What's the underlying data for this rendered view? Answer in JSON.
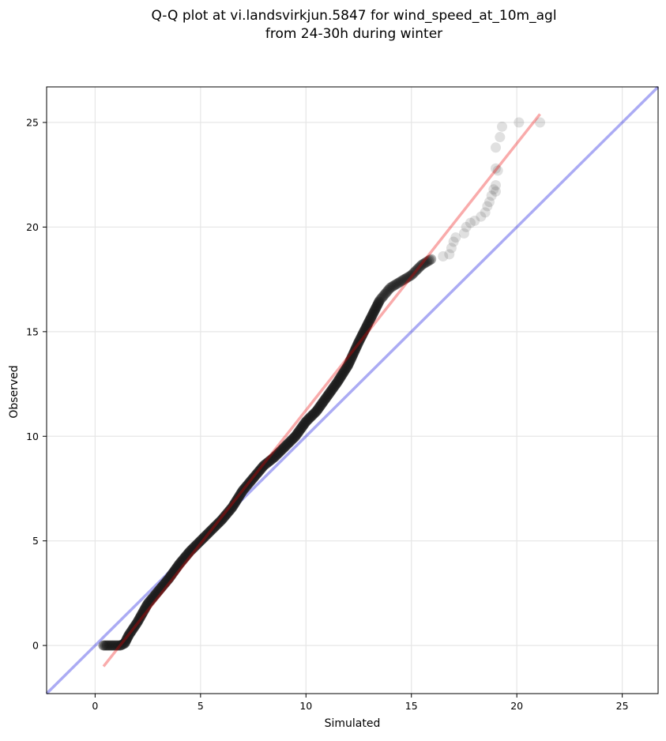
{
  "chart_data": {
    "type": "scatter",
    "title": [
      "Q-Q plot at vi.landsvirkjun.5847 for wind_speed_at_10m_agl",
      "from 24-30h during winter"
    ],
    "xlabel": "Simulated",
    "ylabel": "Observed",
    "xlim": [
      -2.3,
      26.7
    ],
    "ylim": [
      -2.3,
      26.7
    ],
    "x_ticks": [
      0,
      5,
      10,
      15,
      20,
      25
    ],
    "y_ticks": [
      0,
      5,
      10,
      15,
      20,
      25
    ],
    "grid": true,
    "reference_line": {
      "name": "1:1",
      "color": "#0000dd",
      "slope": 1,
      "intercept": 0
    },
    "fit_line": {
      "color": "#ee0000",
      "x": [
        0.4,
        21.1
      ],
      "y": [
        -1.0,
        25.4
      ]
    },
    "quantile_curve": [
      [
        0.4,
        0.0
      ],
      [
        1.2,
        0.0
      ],
      [
        1.4,
        0.1
      ],
      [
        1.6,
        0.5
      ],
      [
        2.0,
        1.1
      ],
      [
        2.5,
        2.0
      ],
      [
        3.0,
        2.6
      ],
      [
        3.5,
        3.2
      ],
      [
        4.0,
        3.9
      ],
      [
        4.5,
        4.5
      ],
      [
        5.0,
        5.0
      ],
      [
        5.5,
        5.5
      ],
      [
        6.0,
        6.0
      ],
      [
        6.5,
        6.6
      ],
      [
        7.0,
        7.4
      ],
      [
        7.5,
        8.0
      ],
      [
        8.0,
        8.6
      ],
      [
        8.5,
        9.0
      ],
      [
        9.0,
        9.5
      ],
      [
        9.5,
        10.0
      ],
      [
        10.0,
        10.7
      ],
      [
        10.5,
        11.2
      ],
      [
        11.0,
        11.9
      ],
      [
        11.5,
        12.6
      ],
      [
        12.0,
        13.4
      ],
      [
        12.5,
        14.5
      ],
      [
        13.0,
        15.5
      ],
      [
        13.5,
        16.5
      ],
      [
        14.0,
        17.1
      ],
      [
        14.5,
        17.4
      ],
      [
        15.0,
        17.7
      ],
      [
        15.5,
        18.2
      ],
      [
        16.0,
        18.5
      ]
    ],
    "tail_points": [
      [
        16.5,
        18.6
      ],
      [
        16.8,
        18.7
      ],
      [
        16.9,
        19.0
      ],
      [
        17.0,
        19.3
      ],
      [
        17.1,
        19.5
      ],
      [
        17.5,
        19.7
      ],
      [
        17.6,
        20.0
      ],
      [
        17.8,
        20.2
      ],
      [
        18.0,
        20.3
      ],
      [
        18.3,
        20.5
      ],
      [
        18.5,
        20.7
      ],
      [
        18.6,
        21.0
      ],
      [
        18.7,
        21.2
      ],
      [
        18.8,
        21.5
      ],
      [
        19.0,
        21.7
      ],
      [
        18.9,
        21.8
      ],
      [
        19.0,
        22.0
      ],
      [
        19.1,
        22.7
      ],
      [
        19.0,
        22.8
      ],
      [
        19.0,
        23.8
      ],
      [
        19.2,
        24.3
      ],
      [
        19.3,
        24.8
      ],
      [
        20.1,
        25.0
      ],
      [
        21.1,
        25.0
      ]
    ]
  }
}
